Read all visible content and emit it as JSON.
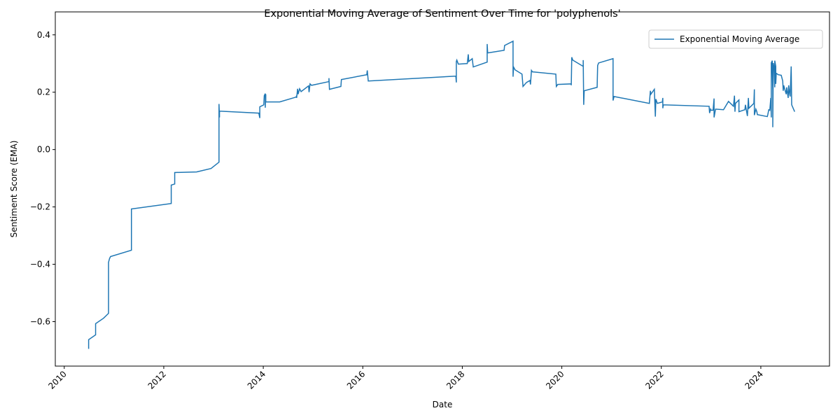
{
  "chart_data": {
    "type": "line",
    "title": "Exponential Moving Average of Sentiment Over Time for 'polyphenols'",
    "xlabel": "Date",
    "ylabel": "Sentiment Score (EMA)",
    "legend": "upper right",
    "grid": false,
    "xlim": [
      2009.82,
      2025.38
    ],
    "xticks": [
      2010,
      2012,
      2014,
      2016,
      2018,
      2020,
      2022,
      2024
    ],
    "ylim": [
      -0.755,
      0.48
    ],
    "yticks": [
      {
        "value": -0.6,
        "label": "−0.6"
      },
      {
        "value": -0.4,
        "label": "−0.4"
      },
      {
        "value": -0.2,
        "label": "−0.2"
      },
      {
        "value": 0,
        "label": "0.0"
      },
      0.2,
      0.4
    ],
    "x": [
      2010.49,
      2010.49,
      2010.63,
      2010.63,
      2010.79,
      2010.89,
      2010.89,
      2010.91,
      2010.93,
      2011.35,
      2011.35,
      2012.15,
      2012.15,
      2012.22,
      2012.22,
      2012.66,
      2012.95,
      2013.11,
      2013.11,
      2013.11,
      2013.12,
      2013.12,
      2013.91,
      2013.93,
      2013.93,
      2014.01,
      2014.02,
      2014.04,
      2014.04,
      2014.05,
      2014.05,
      2014.33,
      2014.66,
      2014.67,
      2014.67,
      2014.69,
      2014.7,
      2014.73,
      2014.76,
      2014.91,
      2014.92,
      2014.94,
      2014.97,
      2015.32,
      2015.32,
      2015.33,
      2015.56,
      2015.57,
      2016.08,
      2016.09,
      2016.11,
      2017.87,
      2017.88,
      2017.88,
      2017.89,
      2017.92,
      2018.1,
      2018.12,
      2018.13,
      2018.2,
      2018.22,
      2018.5,
      2018.5,
      2018.51,
      2018.84,
      2018.85,
      2019.02,
      2019.02,
      2019.03,
      2019.06,
      2019.2,
      2019.22,
      2019.29,
      2019.36,
      2019.37,
      2019.39,
      2019.41,
      2019.88,
      2019.89,
      2019.92,
      2020.19,
      2020.19,
      2020.2,
      2020.22,
      2020.43,
      2020.43,
      2020.44,
      2020.45,
      2020.71,
      2020.72,
      2020.74,
      2021.03,
      2021.03,
      2021.05,
      2021.76,
      2021.78,
      2021.79,
      2021.86,
      2021.88,
      2021.89,
      2021.92,
      2022.02,
      2022.03,
      2022.03,
      2022.04,
      2022.96,
      2022.97,
      2022.99,
      2023.0,
      2023.04,
      2023.06,
      2023.06,
      2023.09,
      2023.25,
      2023.35,
      2023.45,
      2023.47,
      2023.48,
      2023.49,
      2023.56,
      2023.56,
      2023.68,
      2023.69,
      2023.73,
      2023.75,
      2023.76,
      2023.86,
      2023.87,
      2023.87,
      2023.9,
      2023.92,
      2023.93,
      2024.13,
      2024.14,
      2024.16,
      2024.18,
      2024.2,
      2024.21,
      2024.21,
      2024.23,
      2024.23,
      2024.24,
      2024.24,
      2024.25,
      2024.27,
      2024.28,
      2024.28,
      2024.3,
      2024.3,
      2024.31,
      2024.35,
      2024.41,
      2024.44,
      2024.45,
      2024.46,
      2024.49,
      2024.51,
      2024.52,
      2024.55,
      2024.56,
      2024.58,
      2024.59,
      2024.61,
      2024.62,
      2024.68
    ],
    "series": [
      {
        "name": "Exponential Moving Average",
        "color": "#1f77b4",
        "values": [
          -0.695,
          -0.663,
          -0.646,
          -0.607,
          -0.588,
          -0.571,
          -0.393,
          -0.38,
          -0.373,
          -0.351,
          -0.207,
          -0.188,
          -0.124,
          -0.12,
          -0.08,
          -0.078,
          -0.066,
          -0.044,
          0.102,
          0.159,
          0.112,
          0.134,
          0.127,
          0.11,
          0.149,
          0.156,
          0.188,
          0.195,
          0.146,
          0.193,
          0.166,
          0.166,
          0.183,
          0.188,
          0.18,
          0.212,
          0.193,
          0.212,
          0.202,
          0.222,
          0.2,
          0.229,
          0.224,
          0.237,
          0.249,
          0.21,
          0.22,
          0.244,
          0.261,
          0.276,
          0.239,
          0.256,
          0.234,
          0.307,
          0.312,
          0.298,
          0.3,
          0.332,
          0.307,
          0.317,
          0.288,
          0.305,
          0.368,
          0.337,
          0.346,
          0.363,
          0.378,
          0.254,
          0.288,
          0.278,
          0.263,
          0.22,
          0.234,
          0.241,
          0.227,
          0.276,
          0.271,
          0.263,
          0.22,
          0.227,
          0.229,
          0.224,
          0.322,
          0.312,
          0.29,
          0.312,
          0.156,
          0.205,
          0.217,
          0.293,
          0.302,
          0.317,
          0.171,
          0.185,
          0.161,
          0.205,
          0.193,
          0.21,
          0.115,
          0.176,
          0.161,
          0.166,
          0.18,
          0.144,
          0.156,
          0.151,
          0.127,
          0.141,
          0.137,
          0.137,
          0.178,
          0.112,
          0.141,
          0.139,
          0.168,
          0.151,
          0.188,
          0.132,
          0.161,
          0.173,
          0.132,
          0.139,
          0.156,
          0.117,
          0.18,
          0.144,
          0.161,
          0.21,
          0.12,
          0.141,
          0.132,
          0.122,
          0.115,
          0.122,
          0.139,
          0.137,
          0.18,
          0.112,
          0.302,
          0.31,
          0.278,
          0.205,
          0.078,
          0.302,
          0.28,
          0.217,
          0.31,
          0.29,
          0.229,
          0.266,
          0.261,
          0.259,
          0.239,
          0.205,
          0.224,
          0.205,
          0.193,
          0.217,
          0.18,
          0.224,
          0.193,
          0.185,
          0.29,
          0.156,
          0.132
        ]
      }
    ]
  }
}
